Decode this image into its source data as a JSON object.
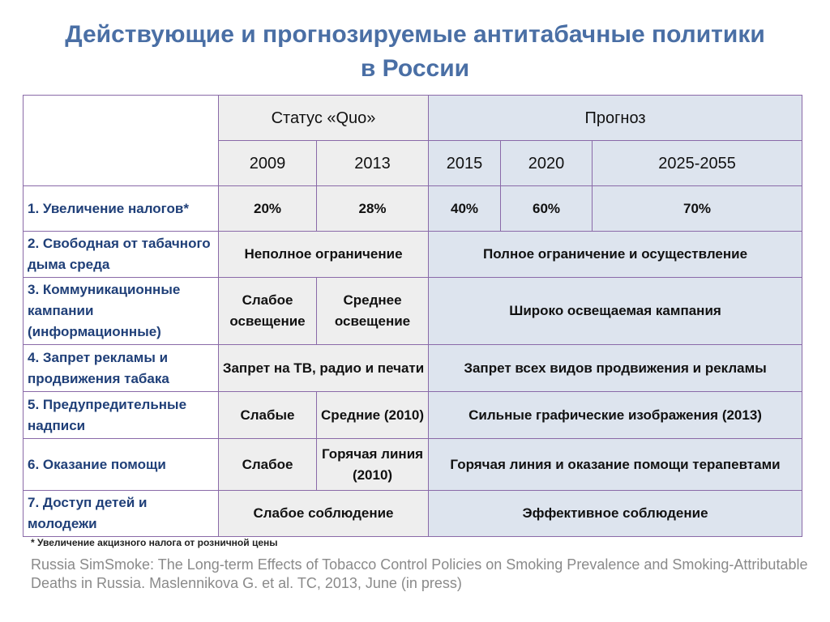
{
  "title": {
    "line1": "Действующие и прогнозируемые антитабачные политики",
    "line2": "в России"
  },
  "table": {
    "group_headers": {
      "status_quo": "Статус «Quo»",
      "forecast": "Прогноз"
    },
    "years": [
      "2009",
      "2013",
      "2015",
      "2020",
      "2025-2055"
    ],
    "rows": [
      {
        "label": "1. Увеличение налогов*",
        "cells": [
          "20%",
          "28%",
          "40%",
          "60%",
          "70%"
        ]
      },
      {
        "label": "2. Свободная от табачного дыма среда",
        "status_merged": "Неполное ограничение",
        "forecast_merged": "Полное ограничение и осуществление"
      },
      {
        "label": "3. Коммуникационные кампании (информационные)",
        "status_2009": "Слабое освещение",
        "status_2013": "Среднее освещение",
        "forecast_merged": "Широко освещаемая кампания"
      },
      {
        "label": "4. Запрет рекламы и продвижения табака",
        "status_merged": "Запрет на ТВ, радио и печати",
        "forecast_merged": "Запрет всех видов продвижения и рекламы"
      },
      {
        "label": "5. Предупредительные надписи",
        "status_2009": "Слабые",
        "status_2013": "Средние (2010)",
        "forecast_merged": "Сильные графические изображения (2013)"
      },
      {
        "label": "6. Оказание помощи",
        "status_2009": "Слабое",
        "status_2013": "Горячая линия (2010)",
        "forecast_merged": "Горячая линия и оказание помощи терапевтами"
      },
      {
        "label": "7. Доступ детей и молодежи",
        "status_merged": "Слабое соблюдение",
        "forecast_merged": "Эффективное соблюдение"
      }
    ]
  },
  "footnote": "* Увеличение акцизного налога от розничной цены",
  "citation": "Russia SimSmoke:  The Long-term Effects of Tobacco Control Policies on Smoking Prevalence and Smoking-Attributable Deaths in Russia.  Maslennikova  G. et al. TC, 2013, June (in press)",
  "colors": {
    "title": "#4a6fa5",
    "row_label": "#1f3f78",
    "status_bg": "#eeeeee",
    "forecast_bg": "#dde4ee",
    "border": "#8a6aa8",
    "citation": "#8a8a8a"
  }
}
